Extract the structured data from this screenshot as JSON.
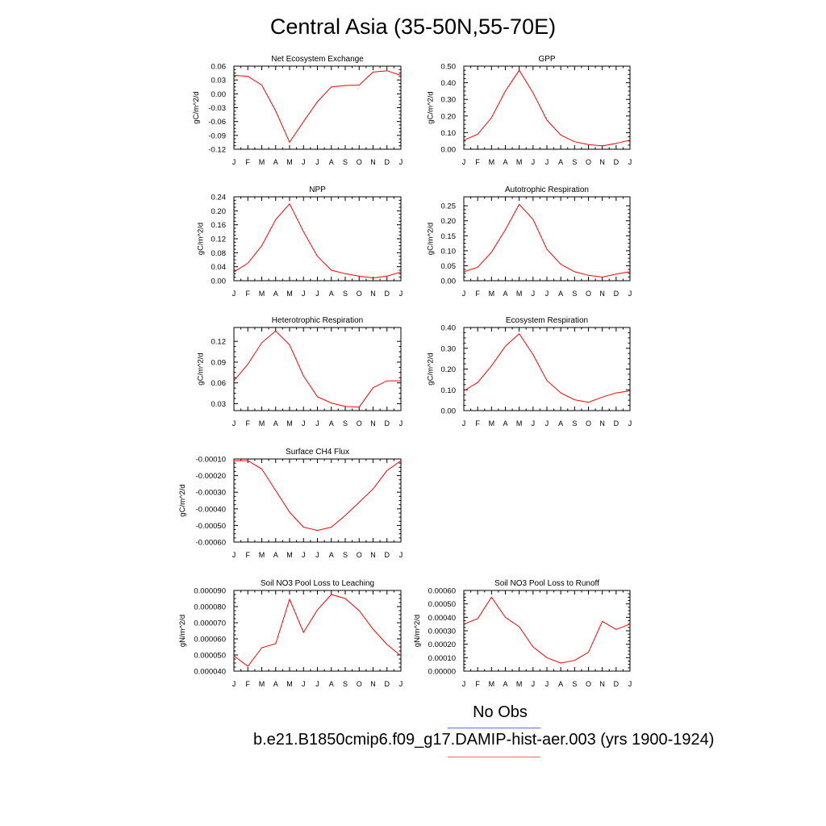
{
  "title": "Central Asia (35-50N,55-70E)",
  "legend": {
    "obs_label": "No Obs",
    "model_label": "b.e21.B1850cmip6.f09_g17.DAMIP-hist-aer.003 (yrs 1900-1924)",
    "obs_color": "#6666ff",
    "model_color": "#ff6666"
  },
  "chart_data": [
    {
      "type": "line",
      "title": "Net Ecosystem Exchange",
      "ylabel": "gC/m^2/d",
      "categories": [
        "J",
        "F",
        "M",
        "A",
        "M",
        "J",
        "J",
        "A",
        "S",
        "O",
        "N",
        "D",
        "J"
      ],
      "ylim": [
        -0.12,
        0.06
      ],
      "yticks": [
        "0.06",
        "0.03",
        "0.00",
        "-0.03",
        "-0.06",
        "-0.09",
        "-0.12"
      ],
      "ytick_values": [
        0.06,
        0.03,
        0.0,
        -0.03,
        -0.06,
        -0.09,
        -0.12
      ],
      "series": [
        {
          "color": "#ff0000",
          "values": [
            0.04,
            0.038,
            0.019,
            -0.037,
            -0.105,
            -0.06,
            -0.017,
            0.015,
            0.018,
            0.019,
            0.047,
            0.05,
            0.04
          ]
        }
      ]
    },
    {
      "type": "line",
      "title": "GPP",
      "ylabel": "gC/m^2/d",
      "categories": [
        "J",
        "F",
        "M",
        "A",
        "M",
        "J",
        "J",
        "A",
        "S",
        "O",
        "N",
        "D",
        "J"
      ],
      "ylim": [
        0.0,
        0.5
      ],
      "yticks": [
        "0.50",
        "0.40",
        "0.30",
        "0.20",
        "0.10",
        "0.00"
      ],
      "ytick_values": [
        0.5,
        0.4,
        0.3,
        0.2,
        0.1,
        0.0
      ],
      "series": [
        {
          "color": "#ff0000",
          "values": [
            0.055,
            0.09,
            0.19,
            0.35,
            0.475,
            0.34,
            0.175,
            0.085,
            0.045,
            0.028,
            0.02,
            0.035,
            0.055
          ]
        }
      ]
    },
    {
      "type": "line",
      "title": "NPP",
      "ylabel": "gC/m^2/d",
      "categories": [
        "J",
        "F",
        "M",
        "A",
        "M",
        "J",
        "J",
        "A",
        "S",
        "O",
        "N",
        "D",
        "J"
      ],
      "ylim": [
        0.0,
        0.24
      ],
      "yticks": [
        "0.24",
        "0.20",
        "0.16",
        "0.12",
        "0.08",
        "0.04",
        "0.00"
      ],
      "ytick_values": [
        0.24,
        0.2,
        0.16,
        0.12,
        0.08,
        0.04,
        0.0
      ],
      "series": [
        {
          "color": "#ff0000",
          "values": [
            0.025,
            0.05,
            0.1,
            0.175,
            0.22,
            0.14,
            0.07,
            0.03,
            0.02,
            0.013,
            0.008,
            0.013,
            0.025
          ]
        }
      ]
    },
    {
      "type": "line",
      "title": "Autotrophic Respiration",
      "ylabel": "gC/m^2/d",
      "categories": [
        "J",
        "F",
        "M",
        "A",
        "M",
        "J",
        "J",
        "A",
        "S",
        "O",
        "N",
        "D",
        "J"
      ],
      "ylim": [
        0.0,
        0.28
      ],
      "yticks": [
        "0.25",
        "0.20",
        "0.15",
        "0.10",
        "0.05",
        "0.00"
      ],
      "ytick_values": [
        0.25,
        0.2,
        0.15,
        0.1,
        0.05,
        0.0
      ],
      "series": [
        {
          "color": "#ff0000",
          "values": [
            0.03,
            0.045,
            0.095,
            0.17,
            0.255,
            0.205,
            0.105,
            0.055,
            0.03,
            0.018,
            0.012,
            0.022,
            0.03
          ]
        }
      ]
    },
    {
      "type": "line",
      "title": "Heterotrophic Respiration",
      "ylabel": "gC/m^2/d",
      "categories": [
        "J",
        "F",
        "M",
        "A",
        "M",
        "J",
        "J",
        "A",
        "S",
        "O",
        "N",
        "D",
        "J"
      ],
      "ylim": [
        0.02,
        0.14
      ],
      "yticks": [
        "0.12",
        "0.09",
        "0.06",
        "0.03"
      ],
      "ytick_values": [
        0.12,
        0.09,
        0.06,
        0.03
      ],
      "series": [
        {
          "color": "#ff0000",
          "values": [
            0.063,
            0.087,
            0.118,
            0.135,
            0.115,
            0.07,
            0.04,
            0.031,
            0.026,
            0.025,
            0.053,
            0.063,
            0.063
          ]
        }
      ]
    },
    {
      "type": "line",
      "title": "Ecosystem Respiration",
      "ylabel": "gC/m^2/d",
      "categories": [
        "J",
        "F",
        "M",
        "A",
        "M",
        "J",
        "J",
        "A",
        "S",
        "O",
        "N",
        "D",
        "J"
      ],
      "ylim": [
        0.0,
        0.4
      ],
      "yticks": [
        "0.40",
        "0.30",
        "0.20",
        "0.10",
        "0.00"
      ],
      "ytick_values": [
        0.4,
        0.3,
        0.2,
        0.1,
        0.0
      ],
      "series": [
        {
          "color": "#ff0000",
          "values": [
            0.095,
            0.135,
            0.215,
            0.31,
            0.37,
            0.27,
            0.145,
            0.085,
            0.052,
            0.04,
            0.065,
            0.085,
            0.095
          ]
        }
      ]
    },
    {
      "type": "line",
      "title": "Surface CH4 Flux",
      "ylabel": "gC/m^2/d",
      "categories": [
        "J",
        "F",
        "M",
        "A",
        "M",
        "J",
        "J",
        "A",
        "S",
        "O",
        "N",
        "D",
        "J"
      ],
      "ylim": [
        -0.0006,
        -0.0001
      ],
      "yticks": [
        "-0.00010",
        "-0.00020",
        "-0.00030",
        "-0.00040",
        "-0.00050",
        "-0.00060"
      ],
      "ytick_values": [
        -0.0001,
        -0.0002,
        -0.0003,
        -0.0004,
        -0.0005,
        -0.0006
      ],
      "series": [
        {
          "color": "#ff0000",
          "values": [
            -0.00011,
            -0.00011,
            -0.00016,
            -0.00029,
            -0.00042,
            -0.00051,
            -0.00053,
            -0.00051,
            -0.00044,
            -0.00036,
            -0.00028,
            -0.00017,
            -0.00011
          ]
        }
      ]
    },
    {
      "type": "line",
      "title": "Soil NO3 Pool Loss to Leaching",
      "ylabel": "gN/m^2/d",
      "categories": [
        "J",
        "F",
        "M",
        "A",
        "M",
        "J",
        "J",
        "A",
        "S",
        "O",
        "N",
        "D",
        "J"
      ],
      "ylim": [
        4e-05,
        9e-05
      ],
      "yticks": [
        "0.000090",
        "0.000080",
        "0.000070",
        "0.000060",
        "0.000050",
        "0.000040"
      ],
      "ytick_values": [
        9e-05,
        8e-05,
        7e-05,
        6e-05,
        5e-05,
        4e-05
      ],
      "series": [
        {
          "color": "#ff0000",
          "values": [
            4.95e-05,
            4.3e-05,
            5.45e-05,
            5.7e-05,
            8.45e-05,
            6.4e-05,
            7.8e-05,
            8.75e-05,
            8.5e-05,
            7.75e-05,
            6.6e-05,
            5.65e-05,
            4.95e-05
          ]
        }
      ]
    },
    {
      "type": "line",
      "title": "Soil NO3 Pool Loss to Runoff",
      "ylabel": "gN/m^2/d",
      "categories": [
        "J",
        "F",
        "M",
        "A",
        "M",
        "J",
        "J",
        "A",
        "S",
        "O",
        "N",
        "D",
        "J"
      ],
      "ylim": [
        0.0,
        0.0006
      ],
      "yticks": [
        "0.00060",
        "0.00050",
        "0.00040",
        "0.00030",
        "0.00020",
        "0.00010",
        "0.00000"
      ],
      "ytick_values": [
        0.0006,
        0.0005,
        0.0004,
        0.0003,
        0.0002,
        0.0001,
        0.0
      ],
      "series": [
        {
          "color": "#ff0000",
          "values": [
            0.00035,
            0.00039,
            0.00055,
            0.0004,
            0.00033,
            0.00018,
            0.0001,
            6e-05,
            8e-05,
            0.00014,
            0.00037,
            0.00031,
            0.00035
          ]
        }
      ]
    }
  ]
}
